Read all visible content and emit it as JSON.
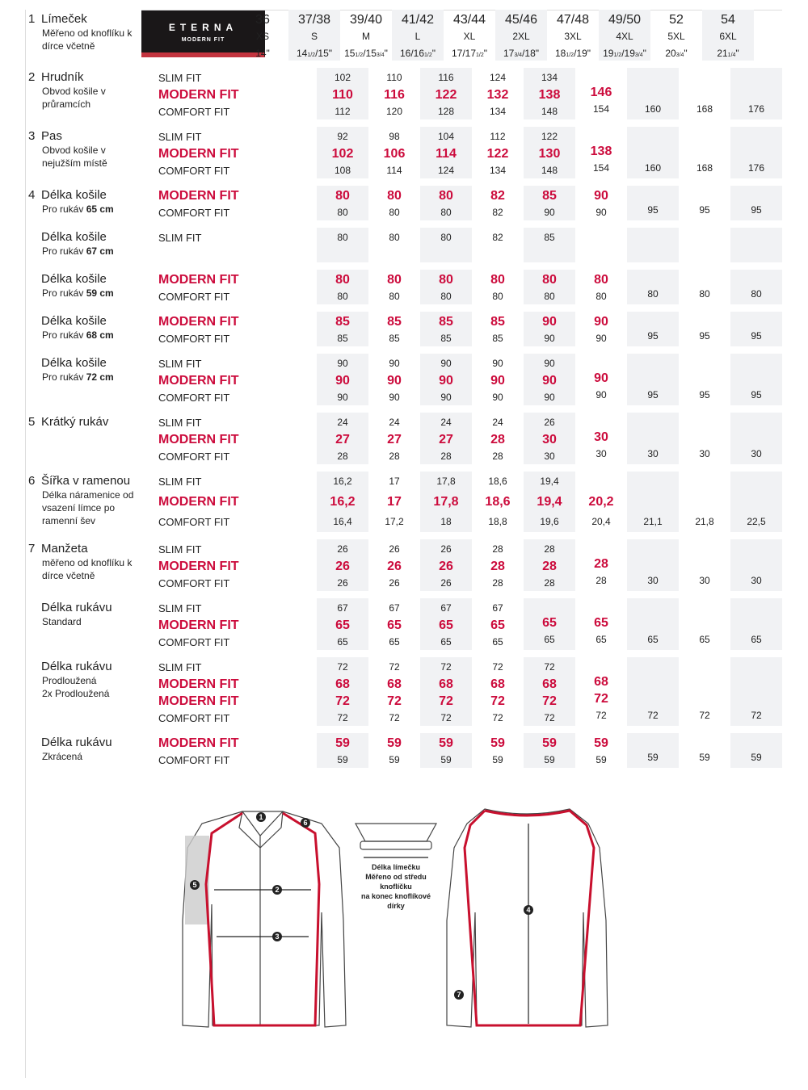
{
  "brand": {
    "name": "ETERNA",
    "line": "MODERN FIT"
  },
  "header": {
    "num": "1",
    "title": "Límeček",
    "sub": [
      "Měřeno od knoflíku k",
      "dírce včetně"
    ],
    "sizes": [
      "36",
      "37/38",
      "39/40",
      "41/42",
      "43/44",
      "45/46",
      "47/48",
      "49/50",
      "52",
      "54"
    ],
    "letters": [
      "XS",
      "S",
      "M",
      "L",
      "XL",
      "2XL",
      "3XL",
      "4XL",
      "5XL",
      "6XL"
    ],
    "inches": [
      [
        "14\""
      ],
      [
        "14",
        "1/2",
        "/15\""
      ],
      [
        "15",
        "1/2",
        "/15",
        "3/4",
        "\""
      ],
      [
        "16/16",
        "1/2",
        "\""
      ],
      [
        "17/17",
        "1/2",
        "\""
      ],
      [
        "17",
        "3/4",
        "/18\""
      ],
      [
        "18",
        "1/2",
        "/19\""
      ],
      [
        "19",
        "1/2",
        "/19",
        "3/4",
        "\""
      ],
      [
        "20",
        "3/4",
        "\""
      ],
      [
        "21",
        "1/4",
        "\""
      ]
    ]
  },
  "groups": [
    {
      "num": "2",
      "title": "Hrudník",
      "sub": [
        [
          "Obvod košile v",
          ""
        ],
        [
          "průramcích",
          ""
        ]
      ],
      "lines": [
        {
          "fit": "SLIM FIT",
          "values": [
            "",
            "102",
            "110",
            "116",
            "124",
            "134",
            "",
            "",
            "",
            ""
          ]
        },
        {
          "fit": "MODERN FIT",
          "modern": true,
          "values": [
            "",
            "110",
            "116",
            "122",
            "132",
            "138",
            "146",
            "",
            "",
            ""
          ]
        },
        {
          "fit": "COMFORT FIT",
          "values": [
            "",
            "112",
            "120",
            "128",
            "134",
            "148",
            "154",
            "160",
            "168",
            "176"
          ]
        }
      ]
    },
    {
      "num": "3",
      "title": "Pas",
      "sub": [
        [
          "Obvod košile v",
          ""
        ],
        [
          "nejužším místě",
          ""
        ]
      ],
      "lines": [
        {
          "fit": "SLIM FIT",
          "values": [
            "",
            "92",
            "98",
            "104",
            "112",
            "122",
            "",
            "",
            "",
            ""
          ]
        },
        {
          "fit": "MODERN FIT",
          "modern": true,
          "values": [
            "",
            "102",
            "106",
            "114",
            "122",
            "130",
            "138",
            "",
            "",
            ""
          ]
        },
        {
          "fit": "COMFORT FIT",
          "values": [
            "",
            "108",
            "114",
            "124",
            "134",
            "148",
            "154",
            "160",
            "168",
            "176"
          ]
        }
      ]
    },
    {
      "num": "4",
      "title": "Délka košile",
      "sub": [
        [
          "Pro rukáv ",
          "65 cm"
        ]
      ],
      "lines": [
        {
          "fit": "MODERN FIT",
          "modern": true,
          "values": [
            "",
            "80",
            "80",
            "80",
            "82",
            "85",
            "90",
            "",
            "",
            ""
          ]
        },
        {
          "fit": "COMFORT FIT",
          "values": [
            "",
            "80",
            "80",
            "80",
            "82",
            "90",
            "90",
            "95",
            "95",
            "95"
          ]
        }
      ]
    },
    {
      "num": "",
      "title": "Délka košile",
      "sub": [
        [
          "Pro rukáv ",
          "67 cm"
        ]
      ],
      "lines": [
        {
          "fit": "SLIM FIT",
          "values": [
            "",
            "80",
            "80",
            "80",
            "82",
            "85",
            "",
            "",
            "",
            ""
          ]
        }
      ]
    },
    {
      "num": "",
      "title": "Délka košile",
      "sub": [
        [
          "Pro rukáv ",
          "59 cm"
        ]
      ],
      "lines": [
        {
          "fit": "MODERN FIT",
          "modern": true,
          "values": [
            "",
            "80",
            "80",
            "80",
            "80",
            "80",
            "80",
            "",
            "",
            ""
          ]
        },
        {
          "fit": "COMFORT FIT",
          "values": [
            "",
            "80",
            "80",
            "80",
            "80",
            "80",
            "80",
            "80",
            "80",
            "80"
          ]
        }
      ]
    },
    {
      "num": "",
      "title": "Délka košile",
      "sub": [
        [
          "Pro rukáv ",
          "68 cm"
        ]
      ],
      "lines": [
        {
          "fit": "MODERN FIT",
          "modern": true,
          "values": [
            "",
            "85",
            "85",
            "85",
            "85",
            "90",
            "90",
            "",
            "",
            ""
          ]
        },
        {
          "fit": "COMFORT FIT",
          "values": [
            "",
            "85",
            "85",
            "85",
            "85",
            "90",
            "90",
            "95",
            "95",
            "95"
          ]
        }
      ]
    },
    {
      "num": "",
      "title": "Délka košile",
      "sub": [
        [
          "Pro rukáv ",
          "72 cm"
        ]
      ],
      "lines": [
        {
          "fit": "SLIM FIT",
          "values": [
            "",
            "90",
            "90",
            "90",
            "90",
            "90",
            "",
            "",
            "",
            ""
          ]
        },
        {
          "fit": "MODERN FIT",
          "modern": true,
          "values": [
            "",
            "90",
            "90",
            "90",
            "90",
            "90",
            "90",
            "",
            "",
            ""
          ]
        },
        {
          "fit": "COMFORT FIT",
          "values": [
            "",
            "90",
            "90",
            "90",
            "90",
            "90",
            "90",
            "95",
            "95",
            "95"
          ]
        }
      ]
    },
    {
      "num": "5",
      "title": "Krátký rukáv",
      "sub": [],
      "lines": [
        {
          "fit": "SLIM FIT",
          "values": [
            "",
            "24",
            "24",
            "24",
            "24",
            "26",
            "",
            "",
            "",
            ""
          ]
        },
        {
          "fit": "MODERN FIT",
          "modern": true,
          "values": [
            "",
            "27",
            "27",
            "27",
            "28",
            "30",
            "30",
            "",
            "",
            ""
          ]
        },
        {
          "fit": "COMFORT FIT",
          "values": [
            "",
            "28",
            "28",
            "28",
            "28",
            "30",
            "30",
            "30",
            "30",
            "30"
          ]
        }
      ]
    },
    {
      "num": "6",
      "title": "Šířka v ramenou",
      "sub": [
        [
          "Délka náramenice od",
          ""
        ],
        [
          "vsazení límce po",
          ""
        ],
        [
          "ramenní šev",
          ""
        ]
      ],
      "lines": [
        {
          "fit": "SLIM FIT",
          "values": [
            "",
            "16,2",
            "17",
            "17,8",
            "18,6",
            "19,4",
            "",
            "",
            "",
            ""
          ]
        },
        {
          "fit": "MODERN FIT",
          "modern": true,
          "values": [
            "",
            "16,2",
            "17",
            "17,8",
            "18,6",
            "19,4",
            "20,2",
            "",
            "",
            ""
          ]
        },
        {
          "fit": "COMFORT FIT",
          "values": [
            "",
            "16,4",
            "17,2",
            "18",
            "18,8",
            "19,6",
            "20,4",
            "21,1",
            "21,8",
            "22,5"
          ]
        }
      ]
    },
    {
      "num": "7",
      "title": "Manžeta",
      "sub": [
        [
          "měřeno od knoflíku k",
          ""
        ],
        [
          "dírce včetně",
          ""
        ]
      ],
      "lines": [
        {
          "fit": "SLIM FIT",
          "values": [
            "",
            "26",
            "26",
            "26",
            "28",
            "28",
            "",
            "",
            "",
            ""
          ]
        },
        {
          "fit": "MODERN FIT",
          "modern": true,
          "values": [
            "",
            "26",
            "26",
            "26",
            "28",
            "28",
            "28",
            "",
            "",
            ""
          ]
        },
        {
          "fit": "COMFORT FIT",
          "values": [
            "",
            "26",
            "26",
            "26",
            "28",
            "28",
            "28",
            "30",
            "30",
            "30"
          ]
        }
      ]
    },
    {
      "num": "",
      "title": "Délka rukávu",
      "sub": [
        [
          "Standard",
          ""
        ]
      ],
      "lines": [
        {
          "fit": "SLIM FIT",
          "values": [
            "",
            "67",
            "67",
            "67",
            "67",
            "",
            "",
            "",
            "",
            ""
          ]
        },
        {
          "fit": "MODERN FIT",
          "modern": true,
          "values": [
            "",
            "65",
            "65",
            "65",
            "65",
            "65",
            "65",
            "",
            "",
            ""
          ]
        },
        {
          "fit": "COMFORT FIT",
          "values": [
            "",
            "65",
            "65",
            "65",
            "65",
            "65",
            "65",
            "65",
            "65",
            "65"
          ]
        }
      ]
    },
    {
      "num": "",
      "title": "Délka rukávu",
      "sub": [
        [
          "Prodloužená",
          ""
        ],
        [
          "2x Prodloužená",
          ""
        ]
      ],
      "lines": [
        {
          "fit": "SLIM FIT",
          "values": [
            "",
            "72",
            "72",
            "72",
            "72",
            "72",
            "",
            "",
            "",
            ""
          ]
        },
        {
          "fit": "MODERN FIT",
          "modern": true,
          "values": [
            "",
            "68",
            "68",
            "68",
            "68",
            "68",
            "68",
            "",
            "",
            ""
          ]
        },
        {
          "fit": "MODERN FIT",
          "modern": true,
          "values": [
            "",
            "72",
            "72",
            "72",
            "72",
            "72",
            "72",
            "",
            "",
            ""
          ]
        },
        {
          "fit": "COMFORT FIT",
          "values": [
            "",
            "72",
            "72",
            "72",
            "72",
            "72",
            "72",
            "72",
            "72",
            "72"
          ]
        }
      ]
    },
    {
      "num": "",
      "title": "Délka rukávu",
      "sub": [
        [
          "Zkrácená",
          ""
        ]
      ],
      "lines": [
        {
          "fit": "MODERN FIT",
          "modern": true,
          "values": [
            "",
            "59",
            "59",
            "59",
            "59",
            "59",
            "59",
            "",
            "",
            ""
          ]
        },
        {
          "fit": "COMFORT FIT",
          "values": [
            "",
            "59",
            "59",
            "59",
            "59",
            "59",
            "59",
            "59",
            "59",
            "59"
          ]
        }
      ]
    }
  ],
  "diagram": {
    "markers": [
      "1",
      "2",
      "3",
      "4",
      "5",
      "6",
      "7"
    ],
    "collar_caption": [
      "Délka límečku",
      "Měřeno od středu",
      "knoflíčku",
      "na konec knoflíkové",
      "dírky"
    ]
  },
  "colors": {
    "accent": "#cc0b3c",
    "shade": "#f1f2f4",
    "logo_bg": "#1a1718",
    "logo_stripe": "#c3343f"
  }
}
